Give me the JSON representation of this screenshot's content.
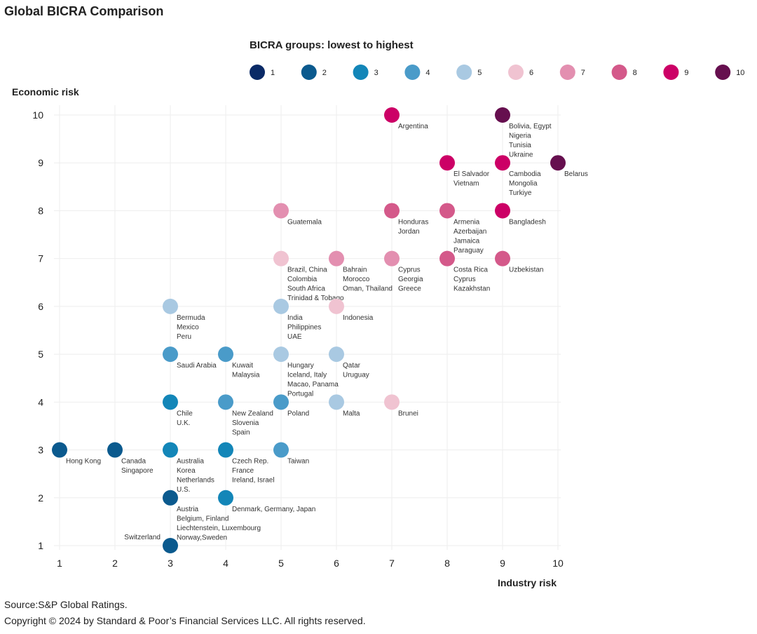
{
  "chart_data": {
    "type": "scatter",
    "title": "Global BICRA Comparison",
    "legend_title": "BICRA groups: lowest to highest",
    "legend_placement": "top",
    "xlabel": "Industry risk",
    "ylabel": "Economic risk",
    "xlim": [
      1,
      10
    ],
    "ylim": [
      1,
      10
    ],
    "x_ticks": [
      "1",
      "2",
      "3",
      "4",
      "5",
      "6",
      "7",
      "8",
      "9",
      "10"
    ],
    "y_ticks": [
      "1",
      "2",
      "3",
      "4",
      "5",
      "6",
      "7",
      "8",
      "9",
      "10"
    ],
    "grid": true,
    "groups": [
      {
        "group": 1,
        "label": "1",
        "color": "#0a2a66"
      },
      {
        "group": 2,
        "label": "2",
        "color": "#0b5a8e"
      },
      {
        "group": 3,
        "label": "3",
        "color": "#1386b8"
      },
      {
        "group": 4,
        "label": "4",
        "color": "#4a9bc9"
      },
      {
        "group": 5,
        "label": "5",
        "color": "#a9c9e2"
      },
      {
        "group": 6,
        "label": "6",
        "color": "#f0c3d1"
      },
      {
        "group": 7,
        "label": "7",
        "color": "#e38fb0"
      },
      {
        "group": 8,
        "label": "8",
        "color": "#d4598a"
      },
      {
        "group": 9,
        "label": "9",
        "color": "#cc0066"
      },
      {
        "group": 10,
        "label": "10",
        "color": "#660f4f"
      }
    ],
    "points": [
      {
        "x": 7,
        "y": 10,
        "group": 9,
        "label": [
          "Argentina"
        ]
      },
      {
        "x": 9,
        "y": 10,
        "group": 10,
        "label": [
          "Bolivia, Egypt",
          "Nigeria",
          "Tunisia",
          "Ukraine"
        ]
      },
      {
        "x": 8,
        "y": 9,
        "group": 9,
        "label": [
          "El Salvador",
          "Vietnam"
        ]
      },
      {
        "x": 9,
        "y": 9,
        "group": 9,
        "label": [
          "Cambodia",
          "Mongolia",
          "Turkiye"
        ]
      },
      {
        "x": 10,
        "y": 9,
        "group": 10,
        "label": [
          "Belarus"
        ],
        "label_side": "right"
      },
      {
        "x": 5,
        "y": 8,
        "group": 7,
        "label": [
          "Guatemala"
        ]
      },
      {
        "x": 7,
        "y": 8,
        "group": 8,
        "label": [
          "Honduras",
          "Jordan"
        ]
      },
      {
        "x": 8,
        "y": 8,
        "group": 8,
        "label": [
          "Armenia",
          "Azerbaijan",
          "Jamaica",
          "Paraguay"
        ]
      },
      {
        "x": 9,
        "y": 8,
        "group": 9,
        "label": [
          "Bangladesh"
        ]
      },
      {
        "x": 5,
        "y": 7,
        "group": 6,
        "label": [
          "Brazil, China",
          "Colombia",
          "South Africa",
          "Trinidad & Tobago"
        ]
      },
      {
        "x": 6,
        "y": 7,
        "group": 7,
        "label": [
          "Bahrain",
          "Morocco",
          "Oman, Thailand"
        ]
      },
      {
        "x": 7,
        "y": 7,
        "group": 7,
        "label": [
          "Cyprus",
          "Georgia",
          "Greece"
        ]
      },
      {
        "x": 8,
        "y": 7,
        "group": 8,
        "label": [
          "Costa Rica",
          "Cyprus",
          "Kazakhstan"
        ]
      },
      {
        "x": 9,
        "y": 7,
        "group": 8,
        "label": [
          "Uzbekistan"
        ]
      },
      {
        "x": 3,
        "y": 6,
        "group": 5,
        "label": [
          "Bermuda",
          "Mexico",
          "Peru"
        ]
      },
      {
        "x": 5,
        "y": 6,
        "group": 5,
        "label": [
          "India",
          "Philippines",
          "UAE"
        ]
      },
      {
        "x": 6,
        "y": 6,
        "group": 6,
        "label": [
          "Indonesia"
        ]
      },
      {
        "x": 3,
        "y": 5,
        "group": 4,
        "label": [
          "Saudi Arabia"
        ]
      },
      {
        "x": 4,
        "y": 5,
        "group": 4,
        "label": [
          "Kuwait",
          "Malaysia"
        ]
      },
      {
        "x": 5,
        "y": 5,
        "group": 5,
        "label": [
          "Hungary",
          "Iceland, Italy",
          "Macao, Panama",
          "Portugal"
        ]
      },
      {
        "x": 6,
        "y": 5,
        "group": 5,
        "label": [
          "Qatar",
          "Uruguay"
        ]
      },
      {
        "x": 3,
        "y": 4,
        "group": 3,
        "label": [
          "Chile",
          "U.K."
        ]
      },
      {
        "x": 4,
        "y": 4,
        "group": 4,
        "label": [
          "New Zealand",
          "Slovenia",
          "Spain"
        ]
      },
      {
        "x": 5,
        "y": 4,
        "group": 4,
        "label": [
          "Poland"
        ]
      },
      {
        "x": 6,
        "y": 4,
        "group": 5,
        "label": [
          "Malta"
        ]
      },
      {
        "x": 7,
        "y": 4,
        "group": 6,
        "label": [
          "Brunei"
        ]
      },
      {
        "x": 1,
        "y": 3,
        "group": 2,
        "label": [
          "Hong Kong"
        ]
      },
      {
        "x": 2,
        "y": 3,
        "group": 2,
        "label": [
          "Canada",
          "Singapore"
        ]
      },
      {
        "x": 3,
        "y": 3,
        "group": 3,
        "label": [
          "Australia",
          "Korea",
          "Netherlands",
          "U.S."
        ]
      },
      {
        "x": 4,
        "y": 3,
        "group": 3,
        "label": [
          "Czech Rep.",
          "France",
          "Ireland, Israel"
        ]
      },
      {
        "x": 5,
        "y": 3,
        "group": 4,
        "label": [
          "Taiwan"
        ]
      },
      {
        "x": 3,
        "y": 2,
        "group": 2,
        "label": [
          "Austria",
          "Belgium, Finland",
          "Liechtenstein, Luxembourg",
          "Norway,Sweden"
        ]
      },
      {
        "x": 4,
        "y": 2,
        "group": 3,
        "label": [
          "Denmark, Germany, Japan"
        ]
      },
      {
        "x": 3,
        "y": 1,
        "group": 2,
        "label": [
          "Switzerland"
        ],
        "label_side": "left"
      }
    ]
  },
  "footer": {
    "source": "Source:S&P Global Ratings.",
    "copyright": "Copyright © 2024 by Standard & Poor’s Financial Services LLC. All rights reserved."
  }
}
